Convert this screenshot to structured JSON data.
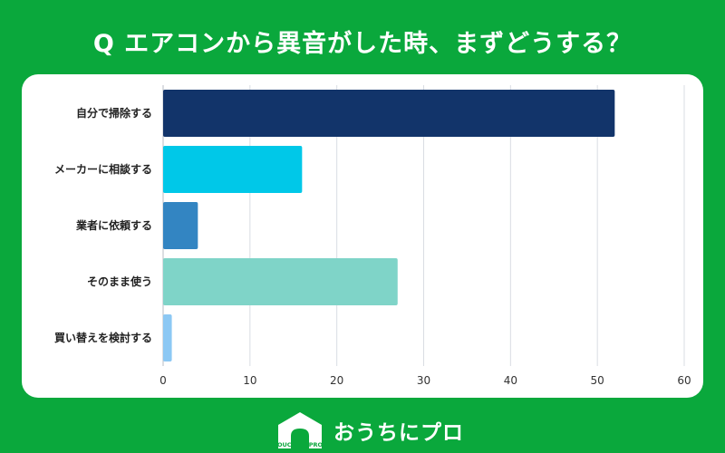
{
  "chart_data": {
    "type": "bar",
    "orientation": "horizontal",
    "title": "Q エアコンから異音がした時、まずどうする？",
    "categories": [
      "自分で掃除する",
      "メーカーに相談する",
      "業者に依頼する",
      "そのまま使う",
      "買い替えを検討する"
    ],
    "values": [
      52,
      16,
      4,
      27,
      1
    ],
    "colors": [
      "#12346a",
      "#00c8e8",
      "#3385c2",
      "#7fd4c8",
      "#8cc8f4"
    ],
    "xlim": [
      0,
      60
    ],
    "xticks": [
      0,
      10,
      20,
      30,
      40,
      50,
      60
    ],
    "grid": true,
    "legend": "none"
  },
  "logo": {
    "text": "おうちにプロ",
    "icon_text": "OUCHI ni PRO",
    "icon": "house-icon"
  },
  "colors": {
    "background": "#0aa83c",
    "card": "#ffffff",
    "grid": "#d9dde3"
  }
}
